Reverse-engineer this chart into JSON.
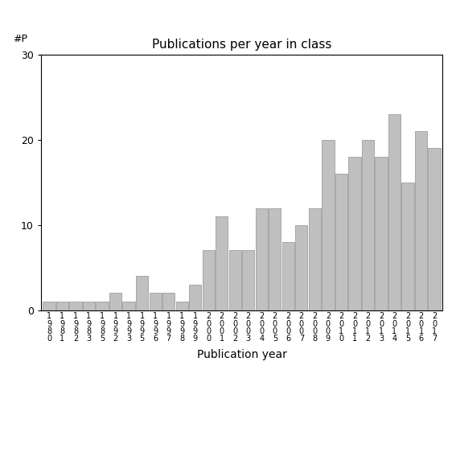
{
  "title": "Publications per year in class",
  "ylabel_text": "#P",
  "xlabel": "Publication year",
  "ylim": [
    0,
    30
  ],
  "yticks": [
    0,
    10,
    20,
    30
  ],
  "years": [
    "1\n9\n8\n0",
    "1\n9\n8\n1",
    "1\n9\n8\n2",
    "1\n9\n8\n3",
    "1\n9\n8\n5",
    "1\n9\n9\n2",
    "1\n9\n9\n3",
    "1\n9\n9\n5",
    "1\n9\n9\n6",
    "1\n9\n9\n7",
    "1\n9\n9\n8",
    "1\n9\n9\n9",
    "2\n0\n0\n0",
    "2\n0\n0\n1",
    "2\n0\n0\n2",
    "2\n0\n0\n3",
    "2\n0\n0\n4",
    "2\n0\n0\n5",
    "2\n0\n0\n6",
    "2\n0\n0\n7",
    "2\n0\n0\n8",
    "2\n0\n0\n9",
    "2\n0\n1\n0",
    "2\n0\n1\n1",
    "2\n0\n1\n2",
    "2\n0\n1\n3",
    "2\n0\n1\n4",
    "2\n0\n1\n5",
    "2\n0\n1\n6",
    "2\n0\n1\n7"
  ],
  "values": [
    1,
    1,
    1,
    1,
    1,
    2,
    1,
    4,
    2,
    2,
    1,
    3,
    7,
    11,
    7,
    7,
    12,
    12,
    8,
    10,
    12,
    20,
    16,
    18,
    20,
    18,
    23,
    15,
    21,
    19
  ],
  "bar_color": "#c0c0c0",
  "bar_edge_color": "#909090",
  "background_color": "#ffffff",
  "title_fontsize": 11,
  "label_fontsize": 10,
  "tick_fontsize": 9,
  "xtick_fontsize": 7
}
